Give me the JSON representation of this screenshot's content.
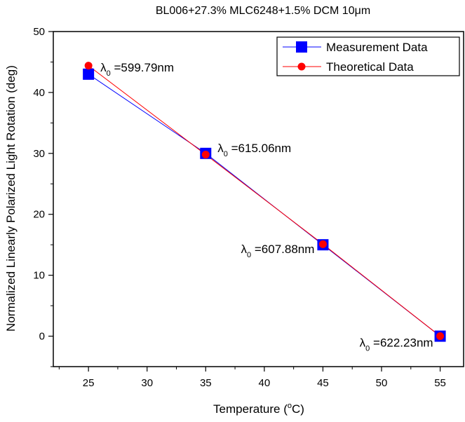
{
  "chart_data": {
    "type": "line",
    "title": "BL006+27.3% MLC6248+1.5% DCM  10μm",
    "xlabel": "Temperature",
    "xlabel_unit": "(oC)",
    "ylabel": "Normalized Linearly Polarized Light Rotation (deg)",
    "xlim": [
      22,
      57
    ],
    "ylim": [
      -5,
      50
    ],
    "x_ticks": [
      25,
      30,
      35,
      40,
      45,
      50,
      55
    ],
    "y_ticks": [
      0,
      10,
      20,
      30,
      40,
      50
    ],
    "series": [
      {
        "name": "Measurement Data",
        "color": "#0000ff",
        "marker": "square",
        "x": [
          25,
          35,
          45,
          55
        ],
        "y": [
          43.0,
          30.0,
          15.0,
          0.0
        ]
      },
      {
        "name": "Theoretical Data",
        "color": "#ff0000",
        "marker": "circle",
        "x": [
          25,
          35,
          45,
          55
        ],
        "y": [
          44.4,
          29.8,
          15.1,
          0.0
        ]
      }
    ],
    "annotations": [
      {
        "symbol": "λ",
        "sub": "0",
        "value": "=599.79nm",
        "x": 25,
        "y": 43.0
      },
      {
        "symbol": "λ",
        "sub": "0",
        "value": "=615.06nm",
        "x": 35,
        "y": 30.0
      },
      {
        "symbol": "λ",
        "sub": "0",
        "value": "=607.88nm",
        "x": 45,
        "y": 15.0
      },
      {
        "symbol": "λ",
        "sub": "0",
        "value": "=622.23nm",
        "x": 55,
        "y": 0.0
      }
    ],
    "legend_position": "top-right",
    "grid": false
  }
}
